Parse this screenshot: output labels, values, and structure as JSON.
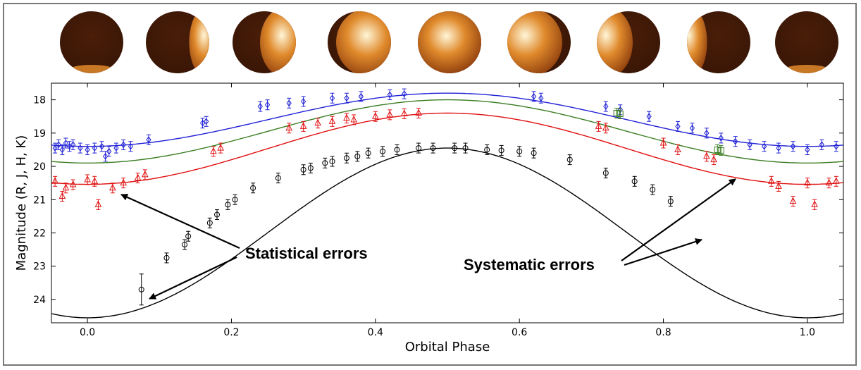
{
  "chart_data": {
    "type": "scatter",
    "xlabel": "Orbital Phase",
    "ylabel": "Magnitude (R, J, H, K)",
    "xlim": [
      -0.05,
      1.05
    ],
    "ylim": [
      24.7,
      17.5
    ],
    "y_inverted": true,
    "x_ticks": [
      "0.0",
      "0.2",
      "0.4",
      "0.6",
      "0.8",
      "1.0"
    ],
    "y_ticks": [
      "18",
      "19",
      "20",
      "21",
      "22",
      "23",
      "24"
    ],
    "series": [
      {
        "color": "#1f1fd6",
        "marker": "diamond",
        "curve": {
          "mean": 18.6,
          "amplitude": 0.8
        },
        "points": [
          [
            -0.045,
            19.45
          ],
          [
            -0.04,
            19.35
          ],
          [
            -0.035,
            19.5
          ],
          [
            -0.03,
            19.3
          ],
          [
            -0.025,
            19.4
          ],
          [
            -0.02,
            19.35
          ],
          [
            -0.01,
            19.45
          ],
          [
            0.0,
            19.5
          ],
          [
            0.01,
            19.45
          ],
          [
            0.02,
            19.4
          ],
          [
            0.025,
            19.7
          ],
          [
            0.03,
            19.55
          ],
          [
            0.04,
            19.45
          ],
          [
            0.05,
            19.35
          ],
          [
            0.06,
            19.4
          ],
          [
            0.085,
            19.2
          ],
          [
            0.16,
            18.7
          ],
          [
            0.165,
            18.65
          ],
          [
            0.24,
            18.2
          ],
          [
            0.25,
            18.15
          ],
          [
            0.28,
            18.1
          ],
          [
            0.3,
            18.05
          ],
          [
            0.34,
            17.95
          ],
          [
            0.36,
            17.95
          ],
          [
            0.38,
            17.9
          ],
          [
            0.42,
            17.85
          ],
          [
            0.44,
            17.82
          ],
          [
            0.62,
            17.9
          ],
          [
            0.63,
            17.95
          ],
          [
            0.72,
            18.2
          ],
          [
            0.74,
            18.3
          ],
          [
            0.78,
            18.5
          ],
          [
            0.82,
            18.8
          ],
          [
            0.84,
            18.85
          ],
          [
            0.86,
            19.0
          ],
          [
            0.88,
            19.15
          ],
          [
            0.9,
            19.25
          ],
          [
            0.92,
            19.35
          ],
          [
            0.94,
            19.4
          ],
          [
            0.96,
            19.45
          ],
          [
            0.98,
            19.4
          ],
          [
            1.0,
            19.5
          ],
          [
            1.02,
            19.35
          ],
          [
            1.04,
            19.4
          ]
        ]
      },
      {
        "color": "#3a7d22",
        "marker": "square",
        "curve": {
          "mean": 18.95,
          "amplitude": 0.95
        },
        "points": [
          [
            0.735,
            18.4
          ],
          [
            0.74,
            18.42
          ],
          [
            0.875,
            19.5
          ],
          [
            0.88,
            19.52
          ]
        ]
      },
      {
        "color": "#e01010",
        "marker": "triangle",
        "curve": {
          "mean": 19.47,
          "amplitude": 1.07
        },
        "points": [
          [
            -0.045,
            20.45
          ],
          [
            -0.035,
            20.9
          ],
          [
            -0.03,
            20.65
          ],
          [
            -0.02,
            20.55
          ],
          [
            0.0,
            20.4
          ],
          [
            0.01,
            20.45
          ],
          [
            0.015,
            21.15
          ],
          [
            0.035,
            20.65
          ],
          [
            0.05,
            20.5
          ],
          [
            0.07,
            20.35
          ],
          [
            0.08,
            20.25
          ],
          [
            0.175,
            19.55
          ],
          [
            0.185,
            19.45
          ],
          [
            0.28,
            18.85
          ],
          [
            0.3,
            18.8
          ],
          [
            0.32,
            18.7
          ],
          [
            0.34,
            18.65
          ],
          [
            0.36,
            18.55
          ],
          [
            0.37,
            18.6
          ],
          [
            0.4,
            18.5
          ],
          [
            0.42,
            18.45
          ],
          [
            0.44,
            18.42
          ],
          [
            0.46,
            18.4
          ],
          [
            0.71,
            18.8
          ],
          [
            0.72,
            18.85
          ],
          [
            0.8,
            19.3
          ],
          [
            0.82,
            19.5
          ],
          [
            0.86,
            19.7
          ],
          [
            0.87,
            19.8
          ],
          [
            0.95,
            20.45
          ],
          [
            0.96,
            20.6
          ],
          [
            0.98,
            21.05
          ],
          [
            1.0,
            20.5
          ],
          [
            1.01,
            21.15
          ],
          [
            1.03,
            20.5
          ],
          [
            1.04,
            20.45
          ]
        ]
      },
      {
        "color": "#000000",
        "marker": "circle",
        "curve": {
          "mean": 22.0,
          "amplitude": 2.55
        },
        "points": [
          [
            0.075,
            23.7
          ],
          [
            0.11,
            22.75
          ],
          [
            0.135,
            22.35
          ],
          [
            0.14,
            22.1
          ],
          [
            0.17,
            21.7
          ],
          [
            0.18,
            21.45
          ],
          [
            0.195,
            21.15
          ],
          [
            0.205,
            21.0
          ],
          [
            0.23,
            20.65
          ],
          [
            0.265,
            20.35
          ],
          [
            0.3,
            20.1
          ],
          [
            0.31,
            20.05
          ],
          [
            0.33,
            19.9
          ],
          [
            0.34,
            19.85
          ],
          [
            0.36,
            19.75
          ],
          [
            0.375,
            19.7
          ],
          [
            0.39,
            19.6
          ],
          [
            0.41,
            19.55
          ],
          [
            0.43,
            19.5
          ],
          [
            0.46,
            19.45
          ],
          [
            0.48,
            19.45
          ],
          [
            0.51,
            19.45
          ],
          [
            0.525,
            19.45
          ],
          [
            0.555,
            19.5
          ],
          [
            0.575,
            19.52
          ],
          [
            0.6,
            19.55
          ],
          [
            0.62,
            19.6
          ],
          [
            0.67,
            19.8
          ],
          [
            0.72,
            20.2
          ],
          [
            0.76,
            20.45
          ],
          [
            0.785,
            20.7
          ],
          [
            0.81,
            21.05
          ]
        ]
      }
    ],
    "annotations": [
      {
        "text": "Statistical errors"
      },
      {
        "text": "Systematic errors"
      }
    ],
    "phase_images": {
      "count": 9,
      "colors": [
        "#3a1606",
        "#8a3a0c",
        "#e08a2c",
        "#fff6d8"
      ]
    }
  }
}
